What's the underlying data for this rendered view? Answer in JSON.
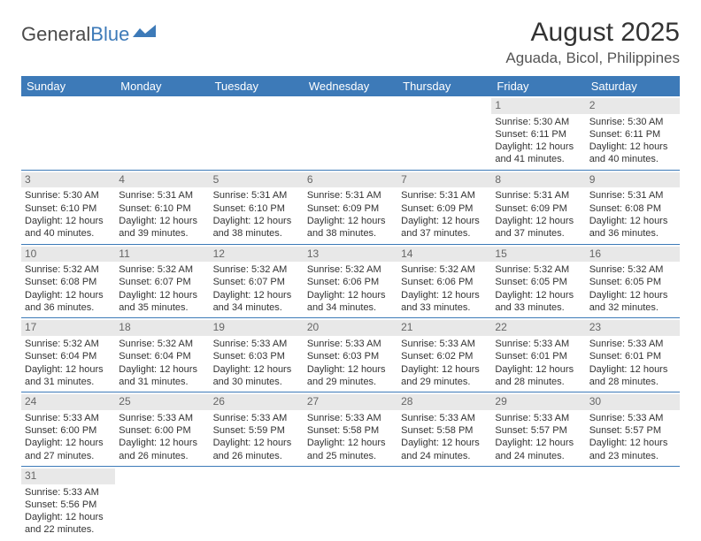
{
  "logo": {
    "part1": "General",
    "part2": "Blue"
  },
  "title": "August 2025",
  "location": "Aguada, Bicol, Philippines",
  "day_headers": [
    "Sunday",
    "Monday",
    "Tuesday",
    "Wednesday",
    "Thursday",
    "Friday",
    "Saturday"
  ],
  "colors": {
    "header_bg": "#3d7ab8",
    "header_text": "#ffffff",
    "daynum_bg": "#e8e8e8",
    "daynum_text": "#666666",
    "cell_text": "#333333",
    "rule": "#3d7ab8"
  },
  "weeks": [
    [
      null,
      null,
      null,
      null,
      null,
      {
        "n": "1",
        "sr": "Sunrise: 5:30 AM",
        "ss": "Sunset: 6:11 PM",
        "d1": "Daylight: 12 hours",
        "d2": "and 41 minutes."
      },
      {
        "n": "2",
        "sr": "Sunrise: 5:30 AM",
        "ss": "Sunset: 6:11 PM",
        "d1": "Daylight: 12 hours",
        "d2": "and 40 minutes."
      }
    ],
    [
      {
        "n": "3",
        "sr": "Sunrise: 5:30 AM",
        "ss": "Sunset: 6:10 PM",
        "d1": "Daylight: 12 hours",
        "d2": "and 40 minutes."
      },
      {
        "n": "4",
        "sr": "Sunrise: 5:31 AM",
        "ss": "Sunset: 6:10 PM",
        "d1": "Daylight: 12 hours",
        "d2": "and 39 minutes."
      },
      {
        "n": "5",
        "sr": "Sunrise: 5:31 AM",
        "ss": "Sunset: 6:10 PM",
        "d1": "Daylight: 12 hours",
        "d2": "and 38 minutes."
      },
      {
        "n": "6",
        "sr": "Sunrise: 5:31 AM",
        "ss": "Sunset: 6:09 PM",
        "d1": "Daylight: 12 hours",
        "d2": "and 38 minutes."
      },
      {
        "n": "7",
        "sr": "Sunrise: 5:31 AM",
        "ss": "Sunset: 6:09 PM",
        "d1": "Daylight: 12 hours",
        "d2": "and 37 minutes."
      },
      {
        "n": "8",
        "sr": "Sunrise: 5:31 AM",
        "ss": "Sunset: 6:09 PM",
        "d1": "Daylight: 12 hours",
        "d2": "and 37 minutes."
      },
      {
        "n": "9",
        "sr": "Sunrise: 5:31 AM",
        "ss": "Sunset: 6:08 PM",
        "d1": "Daylight: 12 hours",
        "d2": "and 36 minutes."
      }
    ],
    [
      {
        "n": "10",
        "sr": "Sunrise: 5:32 AM",
        "ss": "Sunset: 6:08 PM",
        "d1": "Daylight: 12 hours",
        "d2": "and 36 minutes."
      },
      {
        "n": "11",
        "sr": "Sunrise: 5:32 AM",
        "ss": "Sunset: 6:07 PM",
        "d1": "Daylight: 12 hours",
        "d2": "and 35 minutes."
      },
      {
        "n": "12",
        "sr": "Sunrise: 5:32 AM",
        "ss": "Sunset: 6:07 PM",
        "d1": "Daylight: 12 hours",
        "d2": "and 34 minutes."
      },
      {
        "n": "13",
        "sr": "Sunrise: 5:32 AM",
        "ss": "Sunset: 6:06 PM",
        "d1": "Daylight: 12 hours",
        "d2": "and 34 minutes."
      },
      {
        "n": "14",
        "sr": "Sunrise: 5:32 AM",
        "ss": "Sunset: 6:06 PM",
        "d1": "Daylight: 12 hours",
        "d2": "and 33 minutes."
      },
      {
        "n": "15",
        "sr": "Sunrise: 5:32 AM",
        "ss": "Sunset: 6:05 PM",
        "d1": "Daylight: 12 hours",
        "d2": "and 33 minutes."
      },
      {
        "n": "16",
        "sr": "Sunrise: 5:32 AM",
        "ss": "Sunset: 6:05 PM",
        "d1": "Daylight: 12 hours",
        "d2": "and 32 minutes."
      }
    ],
    [
      {
        "n": "17",
        "sr": "Sunrise: 5:32 AM",
        "ss": "Sunset: 6:04 PM",
        "d1": "Daylight: 12 hours",
        "d2": "and 31 minutes."
      },
      {
        "n": "18",
        "sr": "Sunrise: 5:32 AM",
        "ss": "Sunset: 6:04 PM",
        "d1": "Daylight: 12 hours",
        "d2": "and 31 minutes."
      },
      {
        "n": "19",
        "sr": "Sunrise: 5:33 AM",
        "ss": "Sunset: 6:03 PM",
        "d1": "Daylight: 12 hours",
        "d2": "and 30 minutes."
      },
      {
        "n": "20",
        "sr": "Sunrise: 5:33 AM",
        "ss": "Sunset: 6:03 PM",
        "d1": "Daylight: 12 hours",
        "d2": "and 29 minutes."
      },
      {
        "n": "21",
        "sr": "Sunrise: 5:33 AM",
        "ss": "Sunset: 6:02 PM",
        "d1": "Daylight: 12 hours",
        "d2": "and 29 minutes."
      },
      {
        "n": "22",
        "sr": "Sunrise: 5:33 AM",
        "ss": "Sunset: 6:01 PM",
        "d1": "Daylight: 12 hours",
        "d2": "and 28 minutes."
      },
      {
        "n": "23",
        "sr": "Sunrise: 5:33 AM",
        "ss": "Sunset: 6:01 PM",
        "d1": "Daylight: 12 hours",
        "d2": "and 28 minutes."
      }
    ],
    [
      {
        "n": "24",
        "sr": "Sunrise: 5:33 AM",
        "ss": "Sunset: 6:00 PM",
        "d1": "Daylight: 12 hours",
        "d2": "and 27 minutes."
      },
      {
        "n": "25",
        "sr": "Sunrise: 5:33 AM",
        "ss": "Sunset: 6:00 PM",
        "d1": "Daylight: 12 hours",
        "d2": "and 26 minutes."
      },
      {
        "n": "26",
        "sr": "Sunrise: 5:33 AM",
        "ss": "Sunset: 5:59 PM",
        "d1": "Daylight: 12 hours",
        "d2": "and 26 minutes."
      },
      {
        "n": "27",
        "sr": "Sunrise: 5:33 AM",
        "ss": "Sunset: 5:58 PM",
        "d1": "Daylight: 12 hours",
        "d2": "and 25 minutes."
      },
      {
        "n": "28",
        "sr": "Sunrise: 5:33 AM",
        "ss": "Sunset: 5:58 PM",
        "d1": "Daylight: 12 hours",
        "d2": "and 24 minutes."
      },
      {
        "n": "29",
        "sr": "Sunrise: 5:33 AM",
        "ss": "Sunset: 5:57 PM",
        "d1": "Daylight: 12 hours",
        "d2": "and 24 minutes."
      },
      {
        "n": "30",
        "sr": "Sunrise: 5:33 AM",
        "ss": "Sunset: 5:57 PM",
        "d1": "Daylight: 12 hours",
        "d2": "and 23 minutes."
      }
    ],
    [
      {
        "n": "31",
        "sr": "Sunrise: 5:33 AM",
        "ss": "Sunset: 5:56 PM",
        "d1": "Daylight: 12 hours",
        "d2": "and 22 minutes."
      },
      null,
      null,
      null,
      null,
      null,
      null
    ]
  ]
}
